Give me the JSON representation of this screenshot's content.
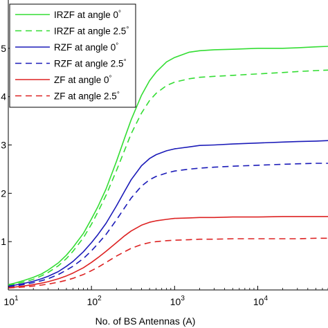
{
  "chart_data": {
    "type": "line",
    "title": "",
    "xlabel": "No. of BS Antennas (A)",
    "ylabel": "",
    "xscale": "log",
    "xlim": [
      10,
      70000
    ],
    "ylim": [
      0,
      6
    ],
    "grid": false,
    "legend_position": "top-left",
    "x_ticks": [
      {
        "value": 10,
        "base": "10",
        "exp": "1"
      },
      {
        "value": 100,
        "base": "10",
        "exp": "2"
      },
      {
        "value": 1000,
        "base": "10",
        "exp": "3"
      },
      {
        "value": 10000,
        "base": "10",
        "exp": "4"
      }
    ],
    "y_ticks": [
      1,
      2,
      3,
      4,
      5
    ],
    "x": [
      10,
      12,
      15,
      20,
      25,
      30,
      40,
      50,
      60,
      80,
      100,
      120,
      150,
      200,
      250,
      300,
      400,
      500,
      600,
      800,
      1000,
      1500,
      2000,
      3000,
      5000,
      10000,
      20000,
      30000,
      50000,
      70000
    ],
    "series": [
      {
        "name": "IRZF at angle 0",
        "degree_symbol": "°",
        "color": "#33dd33",
        "dash": "solid",
        "values": [
          0.11,
          0.14,
          0.19,
          0.26,
          0.33,
          0.41,
          0.56,
          0.72,
          0.88,
          1.17,
          1.47,
          1.73,
          2.09,
          2.66,
          3.14,
          3.52,
          4.03,
          4.33,
          4.51,
          4.72,
          4.81,
          4.92,
          4.95,
          4.97,
          4.98,
          5.0,
          5.0,
          5.01,
          5.03,
          5.04
        ]
      },
      {
        "name": "IRZF at angle 2.5",
        "degree_symbol": "°",
        "color": "#33dd33",
        "dash": "dashed",
        "values": [
          0.09,
          0.12,
          0.16,
          0.22,
          0.29,
          0.36,
          0.5,
          0.65,
          0.8,
          1.08,
          1.36,
          1.62,
          1.96,
          2.47,
          2.89,
          3.23,
          3.66,
          3.92,
          4.07,
          4.23,
          4.3,
          4.37,
          4.4,
          4.42,
          4.44,
          4.47,
          4.5,
          4.52,
          4.54,
          4.55
        ]
      },
      {
        "name": "RZF at angle 0",
        "degree_symbol": "°",
        "color": "#1a1ab8",
        "dash": "solid",
        "values": [
          0.08,
          0.1,
          0.13,
          0.18,
          0.23,
          0.28,
          0.38,
          0.49,
          0.59,
          0.79,
          0.98,
          1.15,
          1.38,
          1.74,
          2.04,
          2.28,
          2.57,
          2.72,
          2.8,
          2.88,
          2.92,
          2.96,
          2.99,
          3.0,
          3.02,
          3.04,
          3.06,
          3.07,
          3.08,
          3.09
        ]
      },
      {
        "name": "RZF at angle 2.5",
        "degree_symbol": "°",
        "color": "#1a1ab8",
        "dash": "dashed",
        "values": [
          0.06,
          0.08,
          0.11,
          0.15,
          0.19,
          0.23,
          0.32,
          0.41,
          0.49,
          0.65,
          0.81,
          0.96,
          1.15,
          1.45,
          1.7,
          1.9,
          2.15,
          2.28,
          2.35,
          2.42,
          2.46,
          2.5,
          2.52,
          2.54,
          2.56,
          2.58,
          2.6,
          2.61,
          2.62,
          2.62
        ]
      },
      {
        "name": "ZF at angle 0",
        "degree_symbol": "°",
        "color": "#dd2222",
        "dash": "solid",
        "values": [
          0.05,
          0.06,
          0.08,
          0.11,
          0.14,
          0.17,
          0.23,
          0.29,
          0.35,
          0.46,
          0.57,
          0.67,
          0.8,
          0.98,
          1.12,
          1.22,
          1.34,
          1.4,
          1.43,
          1.46,
          1.48,
          1.49,
          1.5,
          1.5,
          1.51,
          1.51,
          1.52,
          1.52,
          1.52,
          1.52
        ]
      },
      {
        "name": "ZF at angle 2.5",
        "degree_symbol": "°",
        "color": "#dd2222",
        "dash": "dashed",
        "values": [
          0.04,
          0.05,
          0.06,
          0.08,
          0.1,
          0.12,
          0.16,
          0.2,
          0.24,
          0.32,
          0.4,
          0.47,
          0.57,
          0.7,
          0.79,
          0.86,
          0.94,
          0.98,
          1.0,
          1.02,
          1.03,
          1.04,
          1.05,
          1.05,
          1.06,
          1.06,
          1.06,
          1.06,
          1.07,
          1.07
        ]
      }
    ]
  }
}
